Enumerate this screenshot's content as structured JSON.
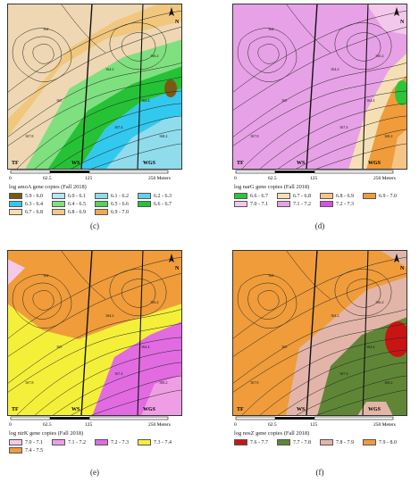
{
  "scale": {
    "ticks": [
      "0",
      "62.5",
      "125",
      "250 Meters"
    ]
  },
  "wells": {
    "tf": "TF",
    "ws": "WS",
    "wgs": "WGS"
  },
  "north_label": "N",
  "panels": [
    {
      "caption": "(c)",
      "legend_title": "log amoA gene copies (Fall 2018)",
      "legend": [
        {
          "label": "5.9 - 6.0",
          "color": "#7a5a12"
        },
        {
          "label": "6.0 - 6.1",
          "color": "#b7e6ef"
        },
        {
          "label": "6.1 - 6.2",
          "color": "#8fdcec"
        },
        {
          "label": "6.2 - 6.3",
          "color": "#5fd3ee"
        },
        {
          "label": "6.3 - 6.4",
          "color": "#33c8ee"
        },
        {
          "label": "6.4 - 6.5",
          "color": "#7fe07f"
        },
        {
          "label": "6.5 - 6.6",
          "color": "#53d35a"
        },
        {
          "label": "6.6 - 6.7",
          "color": "#25c236"
        },
        {
          "label": "6.7 - 6.8",
          "color": "#f6dcb0"
        },
        {
          "label": "6.8 - 6.9",
          "color": "#f2c88a"
        },
        {
          "label": "6.9 - 7.0",
          "color": "#f0a94e"
        }
      ],
      "map_colors": {
        "base": "#eed7b2",
        "mid": "#f0c77c",
        "band1": "#7fe07f",
        "band2": "#25c236",
        "deep": "#33c8ee",
        "light": "#8fdcec",
        "dark": "#7a5a12"
      }
    },
    {
      "caption": "(d)",
      "legend_title": "log narG gene copies (Fall 2018)",
      "legend": [
        {
          "label": "6.6 - 6.7",
          "color": "#2ec43a"
        },
        {
          "label": "6.7 - 6.8",
          "color": "#f4e0b4"
        },
        {
          "label": "6.8 - 6.9",
          "color": "#f6c487"
        },
        {
          "label": "6.9 - 7.0",
          "color": "#f09c3a"
        },
        {
          "label": "7.0 - 7.1",
          "color": "#f3c8ea"
        },
        {
          "label": "7.1 - 7.2",
          "color": "#e7a1e6"
        },
        {
          "label": "7.2 - 7.3",
          "color": "#d94fe2"
        }
      ],
      "map_colors": {
        "base": "#e7a1e6",
        "mid": "#f3c8ea",
        "band1": "#f4e0b4",
        "band2": "#f09c3a",
        "deep": "#2ec43a",
        "light": "#f6c487",
        "dark": "#d94fe2"
      }
    },
    {
      "caption": "(e)",
      "legend_title": "log nirK gene copies (Fall 2018)",
      "legend": [
        {
          "label": "7.0 - 7.1",
          "color": "#f7c9e8"
        },
        {
          "label": "7.1 - 7.2",
          "color": "#ee9fe4"
        },
        {
          "label": "7.2 - 7.3",
          "color": "#e26be2"
        },
        {
          "label": "7.3 - 7.4",
          "color": "#f4f03a"
        },
        {
          "label": "7.4 - 7.5",
          "color": "#f09c3a"
        }
      ],
      "map_colors": {
        "base": "#f09c3a",
        "mid": "#f4f03a",
        "band1": "#f4f03a",
        "band2": "#e26be2",
        "deep": "#e26be2",
        "light": "#ee9fe4",
        "dark": "#f7c9e8"
      }
    },
    {
      "caption": "(f)",
      "legend_title": "log nosZ gene copies (Fall 2018)",
      "legend": [
        {
          "label": "7.6 - 7.7",
          "color": "#c91414"
        },
        {
          "label": "7.7 - 7.8",
          "color": "#5f8636"
        },
        {
          "label": "7.8 - 7.9",
          "color": "#e3b5a8"
        },
        {
          "label": "7.9 - 8.0",
          "color": "#f09c3a"
        }
      ],
      "map_colors": {
        "base": "#f09c3a",
        "mid": "#e3b5a8",
        "band1": "#e3b5a8",
        "band2": "#5f8636",
        "deep": "#5f8636",
        "light": "#e3b5a8",
        "dark": "#c91414"
      }
    }
  ],
  "contour_labels": [
    "164",
    "164.2",
    "164.4",
    "165",
    "166.2",
    "167.4",
    "167.8",
    "168.2"
  ]
}
